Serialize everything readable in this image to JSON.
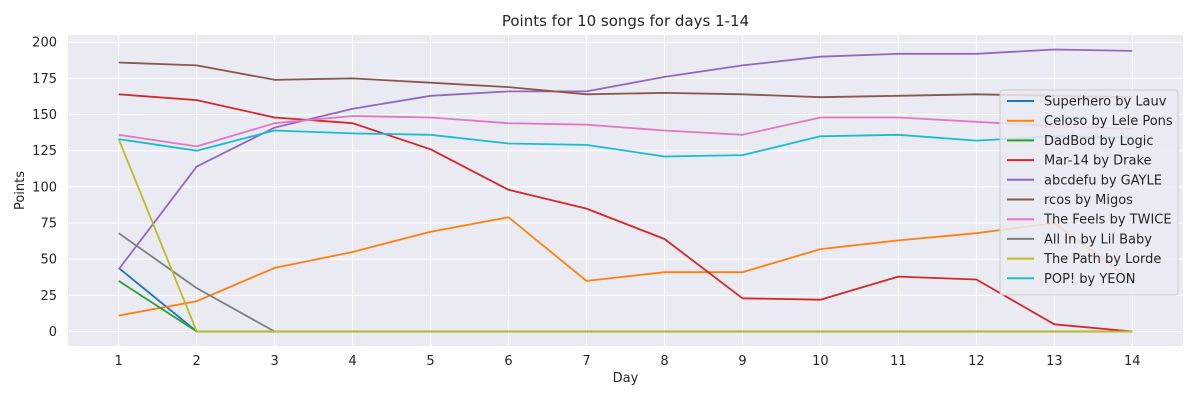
{
  "chart_data": {
    "type": "line",
    "title": "Points for 10 songs for days 1-14",
    "xlabel": "Day",
    "ylabel": "Points",
    "x": [
      1,
      2,
      3,
      4,
      5,
      6,
      7,
      8,
      9,
      10,
      11,
      12,
      13,
      14
    ],
    "xlim": [
      0.35,
      14.65
    ],
    "ylim": [
      -10,
      205
    ],
    "yticks": [
      0,
      25,
      50,
      75,
      100,
      125,
      150,
      175,
      200
    ],
    "grid": true,
    "legend_position": "right",
    "background": "#eaeaf2",
    "series": [
      {
        "name": "Superhero by Lauv",
        "color": "#1f77b4",
        "values": [
          44,
          0,
          0,
          0,
          0,
          0,
          0,
          0,
          0,
          0,
          0,
          0,
          0,
          0
        ]
      },
      {
        "name": "Celoso by Lele Pons",
        "color": "#ff7f0e",
        "values": [
          11,
          21,
          44,
          55,
          69,
          79,
          35,
          41,
          41,
          57,
          63,
          68,
          75,
          35
        ]
      },
      {
        "name": "DadBod by Logic",
        "color": "#2ca02c",
        "values": [
          35,
          0,
          0,
          0,
          0,
          0,
          0,
          0,
          0,
          0,
          0,
          0,
          0,
          0
        ]
      },
      {
        "name": "Mar-14 by Drake",
        "color": "#d62728",
        "values": [
          164,
          160,
          148,
          144,
          126,
          98,
          85,
          64,
          23,
          22,
          38,
          36,
          5,
          0
        ]
      },
      {
        "name": "abcdefu by GAYLE",
        "color": "#9467bd",
        "values": [
          43,
          114,
          141,
          154,
          163,
          166,
          166,
          176,
          184,
          190,
          192,
          192,
          195,
          194
        ]
      },
      {
        "name": "rcos by Migos",
        "color": "#8c564b",
        "values": [
          186,
          184,
          174,
          175,
          172,
          169,
          164,
          165,
          164,
          162,
          163,
          164,
          163,
          162
        ]
      },
      {
        "name": "The Feels by TWICE",
        "color": "#e377c2",
        "values": [
          136,
          128,
          144,
          149,
          148,
          144,
          143,
          139,
          136,
          148,
          148,
          145,
          142,
          140
        ]
      },
      {
        "name": "All In by Lil Baby",
        "color": "#7f7f7f",
        "values": [
          68,
          30,
          0,
          0,
          0,
          0,
          0,
          0,
          0,
          0,
          0,
          0,
          0,
          0
        ]
      },
      {
        "name": "The Path by Lorde",
        "color": "#bcbd22",
        "values": [
          133,
          0,
          0,
          0,
          0,
          0,
          0,
          0,
          0,
          0,
          0,
          0,
          0,
          0
        ]
      },
      {
        "name": "POP! by YEON",
        "color": "#17becf",
        "values": [
          133,
          125,
          139,
          137,
          136,
          130,
          129,
          121,
          122,
          135,
          136,
          132,
          135,
          134
        ]
      }
    ]
  }
}
